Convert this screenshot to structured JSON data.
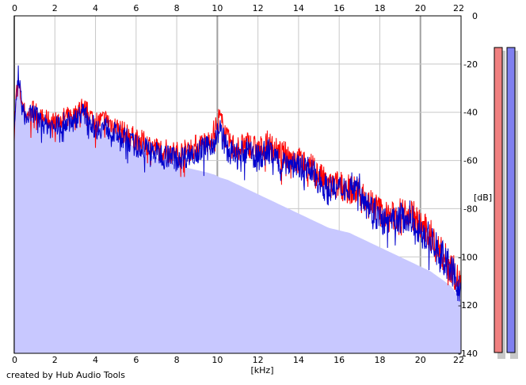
{
  "credit": "created by Hub Audio Tools",
  "colors": {
    "background": "#ffffff",
    "grid": "#c8c8c8",
    "major_grid": "#a0a0a0",
    "fill": "#c8c8ff",
    "left_channel": "#ff0000",
    "right_channel": "#0000cc",
    "meter_left": "#f08080",
    "meter_right": "#8080f0"
  },
  "chart_data": {
    "type": "area",
    "xlabel": "[kHz]",
    "ylabel": "[dB]",
    "xlim": [
      0,
      22
    ],
    "ylim": [
      -140,
      0
    ],
    "x_ticks": [
      0,
      2,
      4,
      6,
      8,
      10,
      12,
      14,
      16,
      18,
      20,
      22
    ],
    "y_ticks": [
      0,
      -20,
      -40,
      -60,
      -80,
      -100,
      -120,
      -140
    ],
    "y_tick_labels": [
      "0",
      "-20",
      "-40",
      "-60",
      "-80",
      "-100",
      "-120",
      "-140"
    ],
    "grid": true,
    "x": [
      0,
      0.1,
      0.2,
      0.4,
      0.6,
      0.8,
      1,
      1.2,
      1.5,
      2,
      2.5,
      3,
      3.3,
      3.6,
      4,
      4.5,
      5,
      5.5,
      6,
      6.5,
      7,
      7.5,
      8,
      8.5,
      9,
      9.5,
      9.9,
      10.1,
      10.5,
      11,
      11.5,
      12,
      12.5,
      13,
      13.5,
      14,
      14.5,
      15,
      15.5,
      16,
      16.5,
      17,
      17.5,
      18,
      18.5,
      19,
      19.5,
      20,
      20.5,
      21,
      21.5,
      22
    ],
    "series": [
      {
        "values": [
          -48,
          -32,
          -28,
          -37,
          -42,
          -40,
          -38,
          -42,
          -43,
          -44,
          -42,
          -41,
          -37,
          -40,
          -44,
          -43,
          -46,
          -49,
          -51,
          -53,
          -55,
          -56,
          -57,
          -56,
          -54,
          -53,
          -47,
          -42,
          -52,
          -55,
          -53,
          -56,
          -53,
          -57,
          -58,
          -60,
          -62,
          -66,
          -71,
          -70,
          -72,
          -73,
          -77,
          -81,
          -84,
          -82,
          -81,
          -87,
          -91,
          -98,
          -104,
          -112
        ]
      },
      {
        "values": [
          -50,
          -35,
          -24,
          -39,
          -43,
          -41,
          -40,
          -43,
          -45,
          -46,
          -44,
          -43,
          -40,
          -42,
          -47,
          -46,
          -49,
          -51,
          -54,
          -55,
          -57,
          -58,
          -59,
          -58,
          -56,
          -55,
          -51,
          -47,
          -56,
          -58,
          -56,
          -59,
          -56,
          -60,
          -61,
          -62,
          -64,
          -68,
          -73,
          -72,
          -70,
          -71,
          -79,
          -84,
          -87,
          -84,
          -83,
          -89,
          -93,
          -99,
          -105,
          -115
        ]
      }
    ],
    "floor": [
      -48,
      -34,
      -26,
      -38,
      -42,
      -41,
      -39,
      -42,
      -44,
      -45,
      -43,
      -42,
      -40,
      -41,
      -45,
      -45,
      -48,
      -52,
      -55,
      -57,
      -59,
      -60,
      -62,
      -63,
      -64,
      -65,
      -66,
      -67,
      -68,
      -70,
      -72,
      -74,
      -76,
      -78,
      -80,
      -82,
      -84,
      -86,
      -88,
      -89,
      -90,
      -92,
      -94,
      -96,
      -98,
      -100,
      -102,
      -104,
      -106,
      -109,
      -112,
      -118
    ]
  },
  "level_meters": [
    {
      "channel": "left",
      "level": 0.965
    },
    {
      "channel": "right",
      "level": 0.965
    }
  ]
}
